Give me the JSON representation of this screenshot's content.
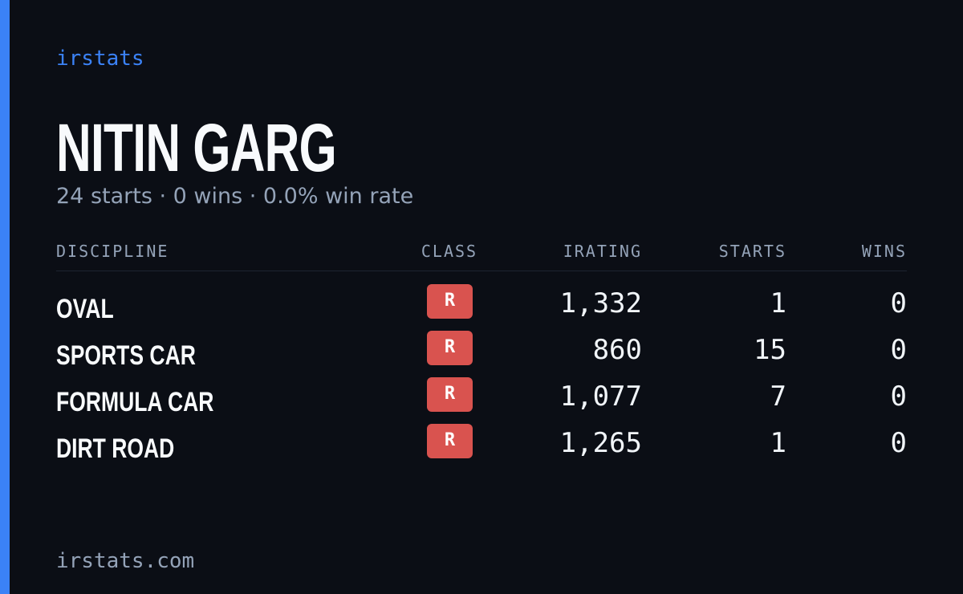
{
  "brand": "irstats",
  "profile": {
    "name": "NITIN GARG",
    "summary": "24 starts · 0 wins · 0.0% win rate"
  },
  "table": {
    "headers": [
      "DISCIPLINE",
      "CLASS",
      "IRATING",
      "STARTS",
      "WINS"
    ],
    "rows": [
      [
        "OVAL",
        "R",
        "1,332",
        "1",
        "0"
      ],
      [
        "SPORTS CAR",
        "R",
        "860",
        "15",
        "0"
      ],
      [
        "FORMULA CAR",
        "R",
        "1,077",
        "7",
        "0"
      ],
      [
        "DIRT ROAD",
        "R",
        "1,265",
        "1",
        "0"
      ]
    ]
  },
  "footer": "irstats.com"
}
